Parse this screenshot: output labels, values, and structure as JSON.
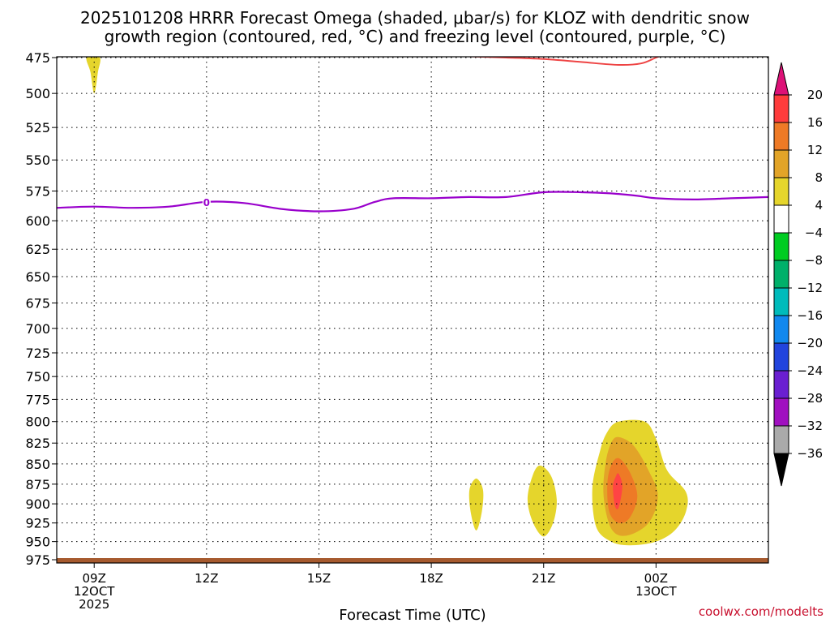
{
  "title_line1": "2025101208 HRRR Forecast Omega (shaded, μbar/s) for KLOZ with dendritic snow",
  "title_line2": "growth region (contoured, red, °C) and freezing level (contoured, purple, °C)",
  "credit": "coolwx.com/modelts",
  "chart_data": {
    "type": "contour",
    "xlabel": "Forecast Time (UTC)",
    "ylabel": "",
    "x_unit": "hours after 12 Oct 2025 00Z",
    "xlim": [
      8.0,
      27.0
    ],
    "ylim": [
      975,
      475
    ],
    "y_scale": "log-pressure",
    "x_ticks": [
      {
        "x": 9,
        "lines": [
          "09Z",
          "12OCT",
          "2025"
        ]
      },
      {
        "x": 12,
        "lines": [
          "12Z"
        ]
      },
      {
        "x": 15,
        "lines": [
          "15Z"
        ]
      },
      {
        "x": 18,
        "lines": [
          "18Z"
        ]
      },
      {
        "x": 21,
        "lines": [
          "21Z"
        ]
      },
      {
        "x": 24,
        "lines": [
          "00Z",
          "13OCT"
        ]
      }
    ],
    "y_ticks": [
      475,
      500,
      525,
      550,
      575,
      600,
      625,
      650,
      675,
      700,
      725,
      750,
      775,
      800,
      825,
      850,
      875,
      900,
      925,
      950,
      975
    ],
    "grid": true,
    "colorbar": {
      "labels": [
        "20",
        "16",
        "12",
        "8",
        "4",
        "−4",
        "−8",
        "−12",
        "−16",
        "−20",
        "−24",
        "−28",
        "−32",
        "−36"
      ],
      "colors": [
        "#ff3c3c",
        "#ee7a26",
        "#e2a428",
        "#e5d52c",
        "#ffffff",
        "#00cc22",
        "#00b06a",
        "#00bbbb",
        "#1188ee",
        "#2244dd",
        "#6a1fd1",
        "#a010c0",
        "#aaaaaa"
      ],
      "top_arrow_color": "#dd1177",
      "bottom_arrow_color": "#000000"
    },
    "freezing_level": {
      "label": "0",
      "label_x": 12.0,
      "color": "#9900cc",
      "points": [
        [
          8.0,
          589
        ],
        [
          9.0,
          588
        ],
        [
          10.0,
          589
        ],
        [
          11.0,
          588
        ],
        [
          12.0,
          584
        ],
        [
          13.0,
          585
        ],
        [
          14.0,
          590
        ],
        [
          15.0,
          592
        ],
        [
          15.9,
          590
        ],
        [
          16.5,
          584
        ],
        [
          17.0,
          581
        ],
        [
          18.0,
          581
        ],
        [
          19.0,
          580
        ],
        [
          20.0,
          580
        ],
        [
          21.0,
          576
        ],
        [
          22.0,
          576
        ],
        [
          22.8,
          577
        ],
        [
          23.5,
          579
        ],
        [
          24.0,
          581
        ],
        [
          25.0,
          582
        ],
        [
          26.0,
          581
        ],
        [
          27.0,
          580
        ]
      ]
    },
    "dgz_top": {
      "color": "#ee4444",
      "points": [
        [
          17.6,
          473
        ],
        [
          18.8,
          474
        ],
        [
          20.0,
          475
        ],
        [
          21.0,
          476
        ],
        [
          22.0,
          478
        ],
        [
          23.0,
          480
        ],
        [
          23.6,
          479
        ],
        [
          24.0,
          475
        ],
        [
          24.3,
          472
        ]
      ]
    },
    "omega_regions": [
      {
        "value": 4,
        "color": "#e5d52c",
        "points": [
          [
            8.8,
            475
          ],
          [
            9.15,
            475
          ],
          [
            9.1,
            485
          ],
          [
            9.0,
            500
          ],
          [
            8.9,
            485
          ]
        ]
      },
      {
        "value": 4,
        "color": "#e5d52c",
        "points": [
          [
            19.2,
            868
          ],
          [
            19.38,
            882
          ],
          [
            19.35,
            910
          ],
          [
            19.2,
            935
          ],
          [
            19.05,
            910
          ],
          [
            19.02,
            882
          ]
        ]
      },
      {
        "value": 4,
        "color": "#e5d52c",
        "points": [
          [
            20.9,
            852
          ],
          [
            21.2,
            865
          ],
          [
            21.35,
            895
          ],
          [
            21.25,
            925
          ],
          [
            21.0,
            943
          ],
          [
            20.72,
            925
          ],
          [
            20.57,
            895
          ],
          [
            20.7,
            865
          ]
        ]
      },
      {
        "value": 4,
        "color": "#e5d52c",
        "points": [
          [
            23.0,
            800
          ],
          [
            23.7,
            800
          ],
          [
            24.0,
            820
          ],
          [
            24.3,
            858
          ],
          [
            24.8,
            885
          ],
          [
            24.8,
            910
          ],
          [
            24.5,
            935
          ],
          [
            24.0,
            950
          ],
          [
            23.3,
            955
          ],
          [
            22.8,
            950
          ],
          [
            22.4,
            930
          ],
          [
            22.3,
            880
          ],
          [
            22.5,
            835
          ],
          [
            22.7,
            812
          ]
        ]
      },
      {
        "value": 8,
        "color": "#e2a428",
        "points": [
          [
            23.0,
            818
          ],
          [
            23.4,
            828
          ],
          [
            23.8,
            858
          ],
          [
            24.05,
            890
          ],
          [
            23.8,
            925
          ],
          [
            23.2,
            942
          ],
          [
            22.8,
            932
          ],
          [
            22.6,
            890
          ],
          [
            22.65,
            850
          ],
          [
            22.8,
            825
          ]
        ]
      },
      {
        "value": 12,
        "color": "#ee7a26",
        "points": [
          [
            23.0,
            843
          ],
          [
            23.3,
            860
          ],
          [
            23.5,
            890
          ],
          [
            23.3,
            918
          ],
          [
            23.0,
            925
          ],
          [
            22.75,
            910
          ],
          [
            22.7,
            875
          ],
          [
            22.8,
            852
          ]
        ]
      },
      {
        "value": 16,
        "color": "#ff4444",
        "points": [
          [
            23.0,
            862
          ],
          [
            23.1,
            878
          ],
          [
            23.0,
            905
          ],
          [
            22.9,
            902
          ],
          [
            22.85,
            878
          ],
          [
            22.92,
            866
          ]
        ]
      }
    ],
    "ground_level": 975,
    "ground_color": "#a65a2e"
  }
}
